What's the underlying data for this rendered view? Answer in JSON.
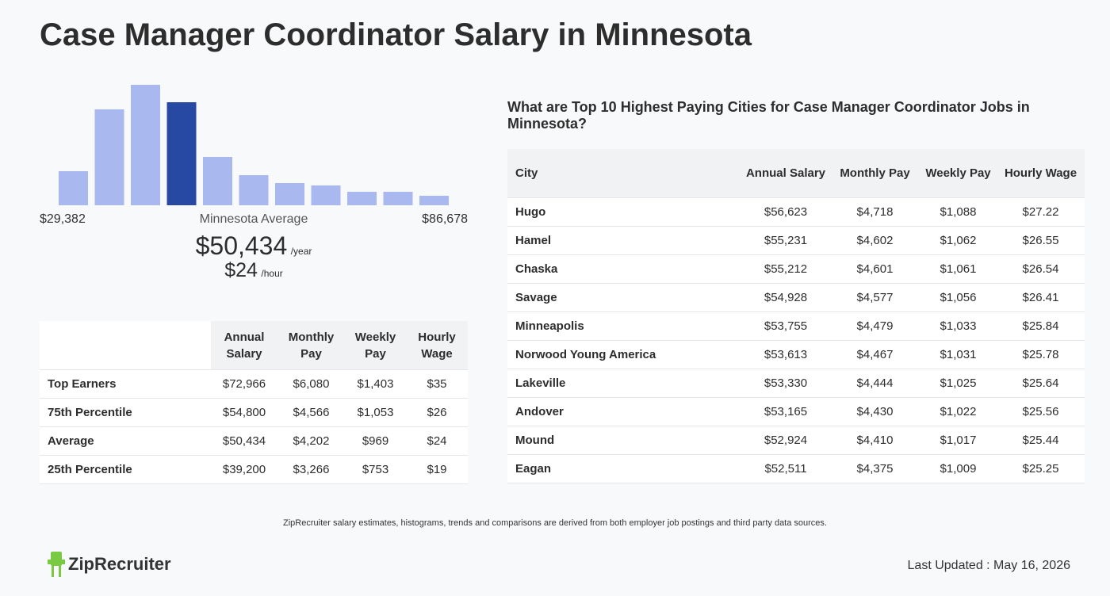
{
  "title": "Case Manager Coordinator Salary in Minnesota",
  "histogram": {
    "values": [
      43,
      121,
      152,
      130,
      61,
      38,
      28,
      25,
      17,
      17,
      12
    ],
    "colors": [
      "#a9b8ef",
      "#a9b8ef",
      "#a9b8ef",
      "#2748a3",
      "#a9b8ef",
      "#a9b8ef",
      "#a9b8ef",
      "#a9b8ef",
      "#a9b8ef",
      "#a9b8ef",
      "#a9b8ef"
    ],
    "min_label": "$29,382",
    "caption": "Minnesota Average",
    "max_label": "$86,678"
  },
  "average": {
    "annual": "$50,434",
    "annual_unit": "/year",
    "hourly": "$24",
    "hourly_unit": "/hour"
  },
  "summary_table": {
    "headers": [
      "Annual Salary",
      "Monthly Pay",
      "Weekly Pay",
      "Hourly Wage"
    ],
    "rows": [
      [
        "Top Earners",
        "$72,966",
        "$6,080",
        "$1,403",
        "$35"
      ],
      [
        "75th Percentile",
        "$54,800",
        "$4,566",
        "$1,053",
        "$26"
      ],
      [
        "Average",
        "$50,434",
        "$4,202",
        "$969",
        "$24"
      ],
      [
        "25th Percentile",
        "$39,200",
        "$3,266",
        "$753",
        "$19"
      ]
    ]
  },
  "cities_table": {
    "title": "What are Top 10 Highest Paying Cities for Case Manager Coordinator Jobs in Minnesota?",
    "headers": [
      "City",
      "Annual Salary",
      "Monthly Pay",
      "Weekly Pay",
      "Hourly Wage"
    ],
    "rows": [
      [
        "Hugo",
        "$56,623",
        "$4,718",
        "$1,088",
        "$27.22"
      ],
      [
        "Hamel",
        "$55,231",
        "$4,602",
        "$1,062",
        "$26.55"
      ],
      [
        "Chaska",
        "$55,212",
        "$4,601",
        "$1,061",
        "$26.54"
      ],
      [
        "Savage",
        "$54,928",
        "$4,577",
        "$1,056",
        "$26.41"
      ],
      [
        "Minneapolis",
        "$53,755",
        "$4,479",
        "$1,033",
        "$25.84"
      ],
      [
        "Norwood Young America",
        "$53,613",
        "$4,467",
        "$1,031",
        "$25.78"
      ],
      [
        "Lakeville",
        "$53,330",
        "$4,444",
        "$1,025",
        "$25.64"
      ],
      [
        "Andover",
        "$53,165",
        "$4,430",
        "$1,022",
        "$25.56"
      ],
      [
        "Mound",
        "$52,924",
        "$4,410",
        "$1,017",
        "$25.44"
      ],
      [
        "Eagan",
        "$52,511",
        "$4,375",
        "$1,009",
        "$25.25"
      ]
    ]
  },
  "footer": {
    "note": "ZipRecruiter salary estimates, histograms, trends and comparisons are derived from both employer job postings and third party data sources.",
    "logo": "ZipRecruiter",
    "last_updated": "Last Updated : May 16, 2026"
  }
}
